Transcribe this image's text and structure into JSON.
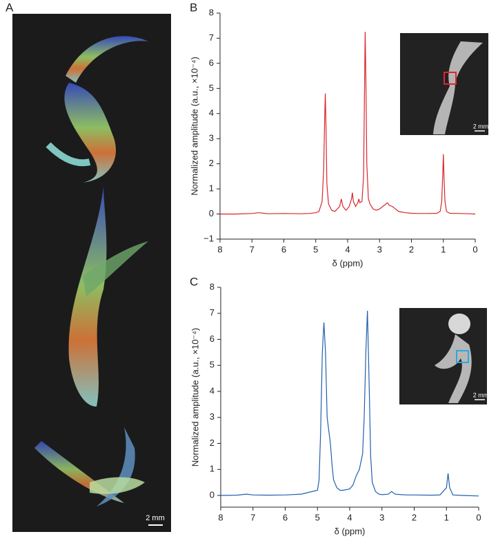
{
  "panel_a": {
    "label": "A",
    "scale_bar": "2 mm"
  },
  "chart_data": [
    {
      "type": "line",
      "panel_label": "B",
      "inset_scale_bar": "2 mm",
      "xlabel": "δ (ppm)",
      "ylabel": "Normalized amplitude (a.u., ×10⁻⁴)",
      "color": "#d7262a",
      "x": [
        8,
        7.5,
        7,
        6.8,
        6.5,
        6,
        5.5,
        5.2,
        5.0,
        4.9,
        4.8,
        4.75,
        4.72,
        4.7,
        4.68,
        4.65,
        4.6,
        4.5,
        4.4,
        4.25,
        4.2,
        4.15,
        4.05,
        3.95,
        3.88,
        3.85,
        3.82,
        3.75,
        3.68,
        3.65,
        3.62,
        3.55,
        3.5,
        3.47,
        3.45,
        3.43,
        3.4,
        3.35,
        3.3,
        3.2,
        3.1,
        3.0,
        2.9,
        2.8,
        2.75,
        2.7,
        2.6,
        2.5,
        2.4,
        2.2,
        2.0,
        1.8,
        1.5,
        1.2,
        1.1,
        1.05,
        1.02,
        1.0,
        0.98,
        0.95,
        0.9,
        0.8,
        0.5,
        0.2,
        0.0
      ],
      "values": [
        0,
        0,
        0.02,
        0.05,
        0.01,
        0.02,
        0.01,
        0.02,
        0.05,
        0.1,
        0.5,
        1.8,
        3.8,
        4.8,
        3.5,
        1.2,
        0.4,
        0.15,
        0.1,
        0.3,
        0.6,
        0.3,
        0.15,
        0.3,
        0.6,
        0.85,
        0.5,
        0.3,
        0.45,
        0.6,
        0.45,
        0.5,
        1.5,
        5.0,
        7.25,
        5.5,
        2.0,
        0.6,
        0.4,
        0.2,
        0.15,
        0.2,
        0.3,
        0.4,
        0.45,
        0.35,
        0.3,
        0.2,
        0.1,
        0.05,
        0.03,
        0.02,
        0.02,
        0.03,
        0.1,
        0.5,
        1.5,
        2.38,
        1.5,
        0.5,
        0.1,
        0.03,
        0.02,
        0.01,
        0
      ],
      "xlim": [
        8,
        0
      ],
      "xticks": [
        8,
        7,
        6,
        5,
        4,
        3,
        2,
        1,
        0
      ],
      "ylim": [
        -1,
        8
      ],
      "yticks": [
        {
          "value": -1,
          "label": "−1"
        },
        0,
        1,
        2,
        3,
        4,
        5,
        6,
        7,
        8
      ]
    },
    {
      "type": "line",
      "panel_label": "C",
      "inset_scale_bar": "2 mm",
      "xlabel": "δ (ppm)",
      "ylabel": "Normalized amplitude (a.u., ×10⁻⁴)",
      "color": "#1f5fad",
      "x": [
        8,
        7.5,
        7.2,
        7,
        6.5,
        6,
        5.5,
        5.0,
        4.95,
        4.9,
        4.85,
        4.8,
        4.75,
        4.7,
        4.65,
        4.6,
        4.55,
        4.5,
        4.4,
        4.3,
        4.2,
        4.0,
        3.9,
        3.8,
        3.7,
        3.6,
        3.55,
        3.5,
        3.45,
        3.4,
        3.35,
        3.3,
        3.2,
        3.1,
        3.0,
        2.8,
        2.7,
        2.6,
        2.4,
        2.2,
        2.0,
        1.5,
        1.2,
        1.0,
        0.95,
        0.9,
        0.8,
        0.5,
        0.0
      ],
      "values": [
        0,
        0.01,
        0.05,
        0.02,
        0.01,
        0.02,
        0.05,
        0.2,
        0.6,
        2.5,
        5.5,
        6.65,
        5.5,
        3.0,
        2.5,
        2.0,
        1.2,
        0.6,
        0.3,
        0.2,
        0.2,
        0.25,
        0.4,
        0.75,
        1.0,
        1.6,
        3.0,
        5.5,
        7.1,
        4.5,
        1.5,
        0.5,
        0.15,
        0.05,
        0.03,
        0.05,
        0.15,
        0.05,
        0.03,
        0.02,
        0.02,
        0.01,
        0.02,
        0.3,
        0.85,
        0.3,
        0.02,
        0,
        -0.02
      ],
      "xlim": [
        8,
        0
      ],
      "xticks": [
        8,
        7,
        6,
        5,
        4,
        3,
        2,
        1,
        0
      ],
      "ylim": [
        -0.45,
        8
      ],
      "yticks": [
        0,
        1,
        2,
        3,
        4,
        5,
        6,
        7,
        8
      ]
    }
  ]
}
